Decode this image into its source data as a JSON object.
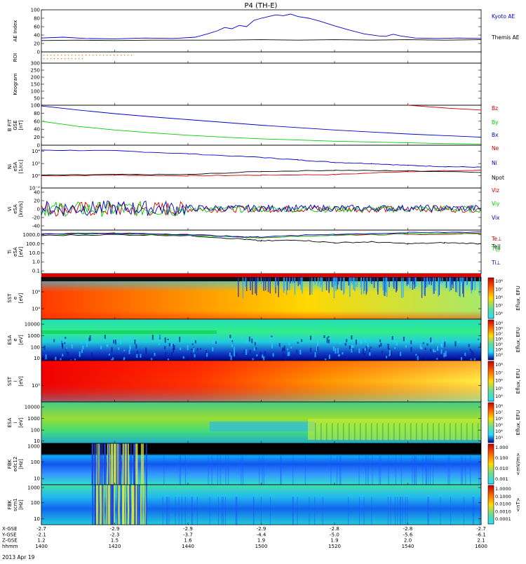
{
  "title": "P4 (TH-E)",
  "chart_data": {
    "type": "line",
    "title": "P4 (TH-E)",
    "date": "2013 Apr 19",
    "x_range": [
      "14:00",
      "16:00"
    ],
    "time_ticks": [
      "1400",
      "1420",
      "1440",
      "1500",
      "1520",
      "1540",
      "1600"
    ],
    "time_minutes": [
      0,
      20,
      40,
      60,
      80,
      100,
      120
    ],
    "orbit_rows": [
      {
        "label": "X-GSE",
        "values": [
          "-2.7",
          "-2.9",
          "-2.9",
          "-2.9",
          "-2.8",
          "-2.8",
          "-2.7"
        ]
      },
      {
        "label": "Y-GSE",
        "values": [
          "-2.1",
          "-2.3",
          "-3.7",
          "-4.4",
          "-5.0",
          "-5.6",
          "-6.1"
        ]
      },
      {
        "label": "Z-GSE",
        "values": [
          "1.2",
          "1.5",
          "1.6",
          "1.9",
          "1.9",
          "2.0",
          "2.1"
        ]
      },
      {
        "label": "hhmm",
        "values": [
          "1400",
          "1420",
          "1440",
          "1500",
          "1520",
          "1540",
          "1600"
        ]
      }
    ],
    "panels": [
      {
        "id": "ae",
        "ylabel": [
          "AE Index"
        ],
        "ylim": [
          0,
          100
        ],
        "ticks": [
          "100",
          "80",
          "60",
          "40",
          "20",
          "0"
        ],
        "tick_values": [
          100,
          80,
          60,
          40,
          20,
          0
        ],
        "series": [
          {
            "name": "Kyoto AE",
            "color": "#0000cc",
            "points": [
              [
                0,
                33
              ],
              [
                6,
                35
              ],
              [
                12,
                32
              ],
              [
                20,
                31
              ],
              [
                28,
                33
              ],
              [
                36,
                32
              ],
              [
                42,
                35
              ],
              [
                45,
                42
              ],
              [
                48,
                50
              ],
              [
                50,
                58
              ],
              [
                52,
                55
              ],
              [
                54,
                63
              ],
              [
                56,
                60
              ],
              [
                58,
                75
              ],
              [
                60,
                80
              ],
              [
                62,
                84
              ],
              [
                64,
                88
              ],
              [
                66,
                86
              ],
              [
                68,
                90
              ],
              [
                70,
                84
              ],
              [
                73,
                80
              ],
              [
                76,
                73
              ],
              [
                80,
                62
              ],
              [
                84,
                52
              ],
              [
                88,
                43
              ],
              [
                92,
                38
              ],
              [
                94,
                37
              ],
              [
                96,
                42
              ],
              [
                98,
                38
              ],
              [
                102,
                33
              ],
              [
                108,
                32
              ],
              [
                114,
                33
              ],
              [
                120,
                32
              ]
            ]
          },
          {
            "name": "Themis AE",
            "color": "#000000",
            "points": [
              [
                0,
                27
              ],
              [
                10,
                28
              ],
              [
                20,
                27
              ],
              [
                30,
                28
              ],
              [
                40,
                28
              ],
              [
                50,
                28
              ],
              [
                60,
                29
              ],
              [
                70,
                28
              ],
              [
                80,
                29
              ],
              [
                90,
                28
              ],
              [
                100,
                29
              ],
              [
                110,
                28
              ],
              [
                120,
                29
              ]
            ]
          }
        ]
      },
      {
        "id": "roi",
        "ylabel": [
          "ROI"
        ],
        "ylim": [
          0,
          1
        ],
        "ticks": [],
        "tick_values": []
      },
      {
        "id": "keogram",
        "ylabel": [
          "Keogram"
        ],
        "ylim": [
          0,
          300
        ],
        "ticks": [
          "300",
          "250",
          "200",
          "150",
          "100",
          "50",
          "0"
        ],
        "tick_values": [
          300,
          250,
          200,
          150,
          100,
          50,
          0
        ]
      },
      {
        "id": "bfield",
        "ylabel": [
          "B FIT",
          "GSE",
          "[nT]"
        ],
        "ylim": [
          0,
          100
        ],
        "ticks": [
          "100",
          "80",
          "60",
          "40",
          "20",
          "0"
        ],
        "tick_values": [
          100,
          80,
          60,
          40,
          20,
          0
        ],
        "series": [
          {
            "name": "Bz",
            "color": "#cc0000",
            "points": [
              [
                100,
                100
              ],
              [
                106,
                96
              ],
              [
                112,
                92
              ],
              [
                120,
                88
              ]
            ]
          },
          {
            "name": "By",
            "color": "#00cc00",
            "points": [
              [
                0,
                60
              ],
              [
                10,
                47
              ],
              [
                20,
                38
              ],
              [
                30,
                31
              ],
              [
                40,
                25
              ],
              [
                50,
                20
              ],
              [
                60,
                16
              ],
              [
                70,
                13
              ],
              [
                80,
                10
              ],
              [
                90,
                8
              ],
              [
                100,
                6
              ],
              [
                110,
                4
              ],
              [
                120,
                3
              ]
            ]
          },
          {
            "name": "Bx",
            "color": "#0000cc",
            "points": [
              [
                0,
                98
              ],
              [
                10,
                88
              ],
              [
                20,
                79
              ],
              [
                30,
                71
              ],
              [
                40,
                64
              ],
              [
                50,
                57
              ],
              [
                60,
                50
              ],
              [
                70,
                44
              ],
              [
                80,
                38
              ],
              [
                90,
                33
              ],
              [
                100,
                28
              ],
              [
                110,
                24
              ],
              [
                120,
                20
              ]
            ]
          }
        ]
      },
      {
        "id": "density",
        "ylabel": [
          "Ni",
          "eSA",
          "[1/cc]"
        ],
        "ylim": [
          -2,
          5
        ],
        "log": true,
        "ticks": [
          "10⁴",
          "10²",
          "10⁰",
          "10⁻²"
        ],
        "tick_values": [
          4,
          2,
          0,
          -2
        ],
        "series": [
          {
            "name": "Ne",
            "color": "#cc0000",
            "points": [
              [
                0,
                0
              ],
              [
                20,
                0.1
              ],
              [
                40,
                0
              ],
              [
                60,
                0.1
              ],
              [
                80,
                0.2
              ],
              [
                100,
                0.7
              ],
              [
                120,
                0.9
              ]
            ]
          },
          {
            "name": "Ni",
            "color": "#0000cc",
            "points": [
              [
                0,
                4.2
              ],
              [
                20,
                4.1
              ],
              [
                40,
                3.6
              ],
              [
                60,
                3.0
              ],
              [
                70,
                2.6
              ],
              [
                80,
                2.2
              ],
              [
                90,
                2.0
              ],
              [
                100,
                1.7
              ],
              [
                110,
                1.5
              ],
              [
                120,
                1.4
              ]
            ]
          },
          {
            "name": "Npot",
            "color": "#000000",
            "points": [
              [
                0,
                0.1
              ],
              [
                20,
                0.2
              ],
              [
                40,
                0.2
              ],
              [
                60,
                0.7
              ],
              [
                80,
                0.9
              ],
              [
                100,
                0.8
              ],
              [
                120,
                0.6
              ]
            ]
          }
        ]
      },
      {
        "id": "velocity",
        "ylabel": [
          "Vi",
          "eSA",
          "[km/s]"
        ],
        "ylim": [
          -50,
          50
        ],
        "ticks": [
          "40",
          "20",
          "0",
          "-20",
          "-40"
        ],
        "tick_values": [
          40,
          20,
          0,
          -20,
          -40
        ],
        "series": [
          {
            "name": "Viz",
            "color": "#cc0000"
          },
          {
            "name": "Viy",
            "color": "#00cc00"
          },
          {
            "name": "Vix",
            "color": "#0000cc"
          }
        ]
      },
      {
        "id": "temperature",
        "ylabel": [
          "Ti",
          "eSA",
          "[eV]"
        ],
        "ylim": [
          -1.3,
          3.5
        ],
        "log": true,
        "ticks": [
          "1000.0",
          "100.0",
          "10.0",
          "1.0",
          "0.1"
        ],
        "tick_values": [
          3,
          2,
          1,
          0,
          -1
        ],
        "series": [
          {
            "name": "Te||",
            "color": "#000000",
            "points": [
              [
                0,
                2.9
              ],
              [
                20,
                3.0
              ],
              [
                40,
                2.9
              ],
              [
                55,
                2.5
              ],
              [
                60,
                2.3
              ],
              [
                70,
                2.4
              ],
              [
                80,
                2.1
              ],
              [
                90,
                2.2
              ],
              [
                100,
                2.0
              ],
              [
                110,
                2.1
              ],
              [
                120,
                2.0
              ]
            ]
          },
          {
            "name": "Te⊥",
            "color": "#cc0000",
            "points": [
              [
                0,
                3.1
              ],
              [
                20,
                3.15
              ],
              [
                40,
                3.0
              ],
              [
                55,
                2.75
              ],
              [
                60,
                2.7
              ],
              [
                80,
                2.95
              ],
              [
                100,
                3.05
              ],
              [
                120,
                3.1
              ]
            ]
          },
          {
            "name": "Ti||",
            "color": "#00cc00",
            "points": [
              [
                0,
                3.05
              ],
              [
                20,
                3.1
              ],
              [
                40,
                2.95
              ],
              [
                55,
                2.7
              ],
              [
                60,
                2.65
              ],
              [
                80,
                2.95
              ],
              [
                100,
                3.1
              ],
              [
                120,
                3.15
              ]
            ]
          },
          {
            "name": "Ti⊥",
            "color": "#0000cc",
            "points": [
              [
                0,
                3.1
              ],
              [
                20,
                3.15
              ],
              [
                40,
                3.0
              ],
              [
                55,
                2.75
              ],
              [
                60,
                2.75
              ],
              [
                80,
                3.05
              ],
              [
                100,
                3.2
              ],
              [
                120,
                3.3
              ]
            ]
          }
        ]
      },
      {
        "id": "sst_e",
        "ylabel": [
          "SST",
          "e",
          "[eV]"
        ],
        "ticks": [
          "10⁶",
          "10⁴"
        ],
        "tick_values": [
          0.35,
          0.75
        ],
        "cbar": {
          "label": "Eflux, EFU",
          "ticks": [
            "10⁸",
            "10⁷",
            "10⁶",
            "10⁵",
            "10⁴"
          ],
          "colors": [
            "#cc0000",
            "#ff6600",
            "#ffdd00",
            "#66dd99",
            "#22ddff"
          ]
        }
      },
      {
        "id": "esa_e",
        "ylabel": [
          "ESA",
          "e",
          "[eV]"
        ],
        "ticks": [
          "10000",
          "1000",
          "100",
          "10"
        ],
        "tick_values": [
          0.12,
          0.4,
          0.68,
          0.94
        ],
        "cbar": {
          "label": "Eflux, EFU",
          "ticks": [
            "10⁹",
            "10⁸",
            "10⁷",
            "10⁶",
            "10⁵",
            "10⁴",
            "10³"
          ],
          "colors": [
            "#cc0000",
            "#ff6600",
            "#ffdd00",
            "#66dd99",
            "#22ddff",
            "#2266ff",
            "#000099"
          ]
        }
      },
      {
        "id": "sst_i",
        "ylabel": [
          "SST",
          "i",
          "[eV]"
        ],
        "ticks": [
          "10⁵"
        ],
        "tick_values": [
          0.6
        ],
        "cbar": {
          "label": "Eflux, EFU",
          "ticks": [
            "10⁸",
            "10⁷",
            "10⁶",
            "10⁵",
            "10⁴"
          ],
          "colors": [
            "#cc0000",
            "#ff6600",
            "#ffdd00",
            "#66dd99",
            "#22ddff"
          ]
        }
      },
      {
        "id": "esa_i",
        "ylabel": [
          "ESA",
          "i",
          "[eV]"
        ],
        "ticks": [
          "10000",
          "1000",
          "100",
          "10"
        ],
        "tick_values": [
          0.12,
          0.4,
          0.68,
          0.94
        ],
        "cbar": {
          "label": "Eflux, EFU",
          "ticks": [
            "10⁸",
            "10⁷",
            "10⁶",
            "10⁵",
            "10⁴",
            "10³"
          ],
          "colors": [
            "#cc0000",
            "#ff6600",
            "#ffdd00",
            "#66dd99",
            "#22ddff",
            "#2266ff"
          ]
        }
      },
      {
        "id": "fbk_edc",
        "ylabel": [
          "FBK",
          "edc12",
          "[Hz]"
        ],
        "ticks": [
          "1000",
          "100",
          "10"
        ],
        "tick_values": [
          0.07,
          0.45,
          0.85
        ],
        "cbar": {
          "label": "<mV/m>",
          "ticks": [
            "1.000",
            "0.100",
            "0.010",
            "0.001"
          ],
          "colors": [
            "#cc0000",
            "#ffdd00",
            "#22ddff",
            "#000099"
          ]
        }
      },
      {
        "id": "fbk_scm",
        "ylabel": [
          "FBK",
          "scm1",
          "[Hz]"
        ],
        "ticks": [
          "1000",
          "100",
          "10"
        ],
        "tick_values": [
          0.07,
          0.45,
          0.85
        ],
        "cbar": {
          "label": "<nT>",
          "ticks": [
            "1.0000",
            "0.1000",
            "0.0100",
            "0.0010",
            "0.0001"
          ],
          "colors": [
            "#cc0000",
            "#ffdd00",
            "#22ddff",
            "#2266ff",
            "#000099"
          ]
        }
      }
    ]
  }
}
